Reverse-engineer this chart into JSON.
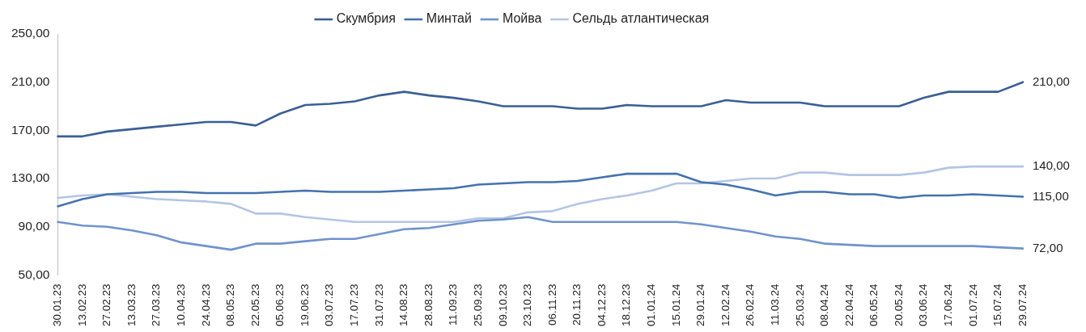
{
  "chart_data": {
    "type": "line",
    "categories": [
      "30.01.23",
      "13.02.23",
      "27.02.23",
      "13.03.23",
      "27.03.23",
      "10.04.23",
      "24.04.23",
      "08.05.23",
      "22.05.23",
      "05.06.23",
      "19.06.23",
      "03.07.23",
      "17.07.23",
      "31.07.23",
      "14.08.23",
      "28.08.23",
      "11.09.23",
      "25.09.23",
      "09.10.23",
      "23.10.23",
      "06.11.23",
      "20.11.23",
      "04.12.23",
      "18.12.23",
      "01.01.24",
      "15.01.24",
      "29.01.24",
      "12.02.24",
      "26.02.24",
      "11.03.24",
      "25.03.24",
      "08.04.24",
      "22.04.24",
      "06.05.24",
      "20.05.24",
      "03.06.24",
      "17.06.24",
      "01.07.24",
      "15.07.24",
      "29.07.24"
    ],
    "series": [
      {
        "name": "Скумбрия",
        "color": "#3a5f94",
        "values": [
          165,
          165,
          169,
          171,
          173,
          175,
          177,
          177,
          174,
          184,
          191,
          192,
          194,
          199,
          202,
          199,
          197,
          194,
          190,
          190,
          190,
          188,
          188,
          191,
          190,
          190,
          190,
          195,
          193,
          193,
          193,
          190,
          190,
          190,
          190,
          197,
          202,
          202,
          202,
          210
        ],
        "value_labels": [
          null,
          null,
          null,
          null,
          null,
          null,
          null,
          null,
          null,
          null,
          null,
          null,
          null,
          null,
          null,
          null,
          null,
          null,
          null,
          null,
          null,
          null,
          null,
          null,
          null,
          null,
          null,
          null,
          null,
          null,
          null,
          null,
          null,
          null,
          null,
          null,
          null,
          null,
          null,
          "210,00"
        ]
      },
      {
        "name": "Минтай",
        "color": "#4472b0",
        "values": [
          107,
          113,
          117,
          118,
          119,
          119,
          118,
          118,
          118,
          119,
          120,
          119,
          119,
          119,
          120,
          121,
          122,
          125,
          126,
          127,
          127,
          128,
          131,
          134,
          134,
          134,
          127,
          125,
          121,
          116,
          119,
          119,
          117,
          117,
          114,
          116,
          116,
          117,
          116,
          115
        ],
        "value_labels": [
          null,
          null,
          null,
          null,
          null,
          null,
          null,
          null,
          null,
          null,
          null,
          null,
          null,
          null,
          null,
          null,
          null,
          null,
          null,
          null,
          null,
          null,
          null,
          null,
          null,
          null,
          null,
          null,
          null,
          null,
          null,
          null,
          null,
          null,
          null,
          null,
          null,
          null,
          null,
          "115,00"
        ]
      },
      {
        "name": "Мойва",
        "color": "#7093cc",
        "values": [
          94,
          91,
          90,
          87,
          83,
          77,
          74,
          71,
          76,
          76,
          78,
          80,
          80,
          84,
          88,
          89,
          92,
          95,
          96,
          98,
          94,
          94,
          94,
          94,
          94,
          94,
          92,
          89,
          86,
          82,
          80,
          76,
          75,
          74,
          74,
          74,
          74,
          74,
          73,
          72
        ],
        "value_labels": [
          null,
          null,
          null,
          null,
          null,
          null,
          null,
          null,
          null,
          null,
          null,
          null,
          null,
          null,
          null,
          null,
          null,
          null,
          null,
          null,
          null,
          null,
          null,
          null,
          null,
          null,
          null,
          null,
          null,
          null,
          null,
          null,
          null,
          null,
          null,
          null,
          null,
          null,
          null,
          "72,00"
        ]
      },
      {
        "name": "Сельдь атлантическая",
        "color": "#b4c5e4",
        "values": [
          114,
          116,
          117,
          115,
          113,
          112,
          111,
          109,
          101,
          101,
          98,
          96,
          94,
          94,
          94,
          94,
          94,
          97,
          97,
          102,
          103,
          109,
          113,
          116,
          120,
          126,
          126,
          128,
          130,
          130,
          135,
          135,
          133,
          133,
          133,
          135,
          139,
          140,
          140,
          140
        ],
        "value_labels": [
          null,
          null,
          null,
          null,
          null,
          null,
          null,
          null,
          null,
          null,
          null,
          null,
          null,
          null,
          null,
          null,
          null,
          null,
          null,
          null,
          null,
          null,
          null,
          null,
          null,
          null,
          null,
          null,
          null,
          null,
          null,
          null,
          null,
          null,
          null,
          null,
          null,
          null,
          null,
          "140,00"
        ]
      }
    ],
    "ylim": [
      50,
      250
    ],
    "yticks": [
      {
        "value": 50,
        "label": "50,00"
      },
      {
        "value": 90,
        "label": "90,00"
      },
      {
        "value": 130,
        "label": "130,00"
      },
      {
        "value": 170,
        "label": "170,00"
      },
      {
        "value": 210,
        "label": "210,00"
      },
      {
        "value": 250,
        "label": "250,00"
      }
    ],
    "grid": false,
    "legend": "top"
  }
}
